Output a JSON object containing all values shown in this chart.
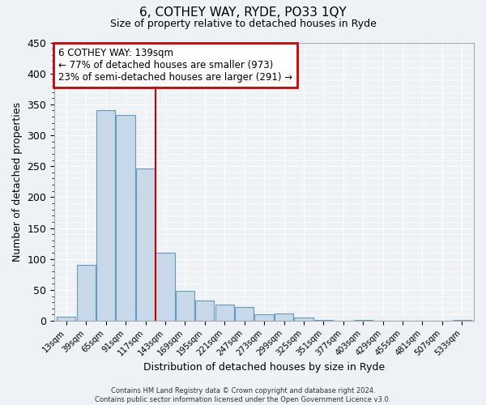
{
  "title": "6, COTHEY WAY, RYDE, PO33 1QY",
  "subtitle": "Size of property relative to detached houses in Ryde",
  "xlabel": "Distribution of detached houses by size in Ryde",
  "ylabel": "Number of detached properties",
  "bar_color": "#c8d9ea",
  "bar_edge_color": "#6699bb",
  "background_color": "#eef2f7",
  "grid_color": "#ffffff",
  "annotation_text": "6 COTHEY WAY: 139sqm\n← 77% of detached houses are smaller (973)\n23% of semi-detached houses are larger (291) →",
  "annotation_box_color": "#ffffff",
  "annotation_box_edge": "#cc0000",
  "footer_line1": "Contains HM Land Registry data © Crown copyright and database right 2024.",
  "footer_line2": "Contains public sector information licensed under the Open Government Licence v3.0.",
  "ylim": [
    0,
    450
  ],
  "yticks": [
    0,
    50,
    100,
    150,
    200,
    250,
    300,
    350,
    400,
    450
  ],
  "categories": [
    "13sqm",
    "39sqm",
    "65sqm",
    "91sqm",
    "117sqm",
    "143sqm",
    "169sqm",
    "195sqm",
    "221sqm",
    "247sqm",
    "273sqm",
    "299sqm",
    "325sqm",
    "351sqm",
    "377sqm",
    "403sqm",
    "429sqm",
    "455sqm",
    "481sqm",
    "507sqm",
    "533sqm"
  ],
  "values": [
    7,
    90,
    340,
    333,
    246,
    110,
    49,
    33,
    26,
    22,
    10,
    12,
    5,
    2,
    0,
    1,
    0,
    0,
    0,
    0,
    1
  ],
  "red_line_index": 5,
  "n_bars": 21
}
